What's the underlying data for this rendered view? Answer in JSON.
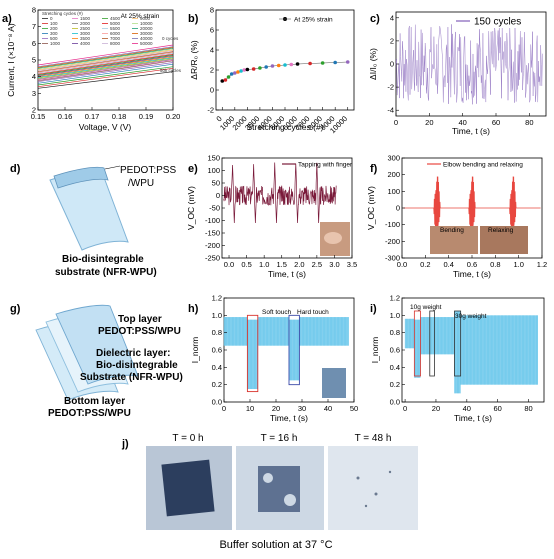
{
  "panel_labels": {
    "a": "a)",
    "b": "b)",
    "c": "c)",
    "d": "d)",
    "e": "e)",
    "f": "f)",
    "g": "g)",
    "h": "h)",
    "i": "i)",
    "j": "j)"
  },
  "panel_a": {
    "annotation": "At 25% strain",
    "legend_title": "Stretching cycles (#)",
    "cycle_labels": [
      "0",
      "100",
      "200",
      "300",
      "500",
      "1000",
      "1500",
      "2000",
      "2500",
      "3000",
      "3500",
      "4000",
      "4500",
      "5000",
      "5500",
      "6000",
      "7000",
      "8000",
      "9000",
      "10000",
      "20000",
      "30000",
      "40000",
      "50000"
    ],
    "side_top": "0 cycles",
    "side_bottom": "50k cycles",
    "ylabel": "Current, I (×10⁻⁸ A)",
    "xlabel": "Voltage, V (V)",
    "xticks": [
      "0.15",
      "0.16",
      "0.17",
      "0.18",
      "0.19",
      "0.20"
    ],
    "yticks": [
      "2",
      "3",
      "4",
      "5",
      "6",
      "7",
      "8"
    ]
  },
  "panel_b": {
    "legend": "At 25% strain",
    "ylabel": "ΔR/R₀ (%)",
    "xlabel": "Stretching cycles (#)",
    "xticks": [
      "0",
      "1000",
      "2000",
      "3000",
      "4000",
      "5000",
      "6000",
      "7000",
      "8000",
      "9000",
      "10000"
    ],
    "yticks": [
      "-2",
      "0",
      "2",
      "4",
      "6",
      "8"
    ]
  },
  "panel_c": {
    "legend": "150 cycles",
    "ylabel": "ΔI/I₀ (%)",
    "xlabel": "Time, t (s)",
    "xticks": [
      "0",
      "20",
      "40",
      "60",
      "80"
    ],
    "yticks": [
      "-4",
      "-2",
      "0",
      "2",
      "4"
    ]
  },
  "panel_d": {
    "top_label_1": "PEDOT:PSS",
    "top_label_2": "/WPU",
    "bottom_label_1": "Bio-disintegrable",
    "bottom_label_2": "substrate (NFR-WPU)"
  },
  "panel_e": {
    "legend": "Tapping with finger",
    "ylabel": "V_OC (mV)",
    "xlabel": "Time, t (s)",
    "xticks": [
      "0.0",
      "0.5",
      "1.0",
      "1.5",
      "2.0",
      "2.5",
      "3.0",
      "3.5"
    ],
    "yticks": [
      "-250",
      "-200",
      "-150",
      "-100",
      "-50",
      "0",
      "50",
      "100",
      "150"
    ]
  },
  "panel_f": {
    "legend": "Elbow bending and relaxing",
    "ylabel": "V_OC (mV)",
    "xlabel": "Time, t (s)",
    "xticks": [
      "0.0",
      "0.2",
      "0.4",
      "0.6",
      "0.8",
      "1.0",
      "1.2"
    ],
    "yticks": [
      "-300",
      "-200",
      "-100",
      "0",
      "100",
      "200",
      "300"
    ],
    "inset_left": "Bending",
    "inset_right": "Relaxing"
  },
  "panel_g": {
    "layer1_a": "Top layer",
    "layer1_b": "PEDOT:PSS/WPU",
    "layer2_a": "Dielectric layer:",
    "layer2_b": "Bio-disintegrable",
    "layer2_c": "Substrate (NFR-WPU)",
    "layer3_a": "Bottom layer",
    "layer3_b": "PEDOT:PSS/WPU"
  },
  "panel_h": {
    "soft": "Soft touch",
    "hard": "Hard touch",
    "ylabel": "I_norm",
    "xlabel": "Time, t (s)",
    "xticks": [
      "0",
      "10",
      "20",
      "30",
      "40",
      "50"
    ],
    "yticks": [
      "0.0",
      "0.2",
      "0.4",
      "0.6",
      "0.8",
      "1.0",
      "1.2"
    ]
  },
  "panel_i": {
    "w10": "10g weight",
    "w30": "30g weight",
    "ylabel": "I_norm",
    "xlabel": "Time, t (s)",
    "xticks": [
      "0",
      "20",
      "40",
      "60",
      "80"
    ],
    "yticks": [
      "0.0",
      "0.2",
      "0.4",
      "0.6",
      "0.8",
      "1.0",
      "1.2"
    ]
  },
  "panel_j": {
    "t0": "T = 0 h",
    "t16": "T = 16 h",
    "t48": "T = 48 h",
    "caption": "Buffer solution at 37 °C"
  },
  "colors": {
    "cycles_band": "#9b7fc7",
    "tapping": "#7a1a3a",
    "elbow": "#e8473f",
    "signal_blue": "#5fc3ea",
    "soft_box": "#d9332c",
    "hard_box": "#3b4aa8",
    "layer": "#bfe0f2"
  },
  "chart_data": [
    {
      "panel": "a",
      "type": "line",
      "x": [
        0.15,
        0.2
      ],
      "series_start": [
        3.3,
        3.4,
        3.5,
        3.6,
        3.7,
        3.75,
        3.8,
        3.85,
        3.9,
        3.95,
        4.0,
        4.05,
        4.1,
        4.15,
        4.2,
        4.25,
        4.3,
        4.35,
        4.4,
        4.45,
        4.5,
        4.55,
        4.6,
        4.7
      ],
      "series_end": [
        4.3,
        4.5,
        4.6,
        4.75,
        4.85,
        4.95,
        5.0,
        5.05,
        5.1,
        5.15,
        5.2,
        5.25,
        5.3,
        5.35,
        5.4,
        5.45,
        5.5,
        5.55,
        5.6,
        5.65,
        5.7,
        5.75,
        5.8,
        5.9
      ],
      "xlim": [
        0.15,
        0.2
      ],
      "ylim": [
        2,
        8
      ]
    },
    {
      "panel": "b",
      "type": "scatter",
      "x": [
        0,
        250,
        500,
        750,
        1000,
        1250,
        1500,
        1750,
        2000,
        2500,
        3000,
        3500,
        4000,
        4500,
        5000,
        5500,
        6000,
        7000,
        8000,
        9000,
        10000
      ],
      "y": [
        0.9,
        1.0,
        1.3,
        1.6,
        1.7,
        1.8,
        1.9,
        2.0,
        2.05,
        2.1,
        2.2,
        2.3,
        2.4,
        2.45,
        2.5,
        2.55,
        2.6,
        2.65,
        2.7,
        2.75,
        2.8
      ],
      "xlim": [
        -500,
        10500
      ],
      "ylim": [
        -2,
        8
      ]
    },
    {
      "panel": "c",
      "type": "line",
      "series": [
        {
          "name": "150 cycles",
          "amplitude": 3.5
        }
      ],
      "xlim": [
        0,
        90
      ],
      "ylim": [
        -4.5,
        4.5
      ]
    },
    {
      "panel": "e",
      "type": "line",
      "series": [
        {
          "name": "Tapping with finger",
          "peak_times": [
            0.1,
            0.7,
            1.3,
            1.9,
            2.5
          ],
          "peak": 130,
          "trough": -110
        }
      ],
      "xlim": [
        -0.2,
        3.5
      ],
      "ylim": [
        -250,
        150
      ]
    },
    {
      "panel": "f",
      "type": "line",
      "series": [
        {
          "name": "Elbow bending and relaxing",
          "burst_times": [
            0.3,
            0.6,
            0.95
          ],
          "peak": 210,
          "trough": -210
        }
      ],
      "xlim": [
        0,
        1.2
      ],
      "ylim": [
        -300,
        300
      ]
    },
    {
      "panel": "h",
      "type": "area",
      "xlim": [
        0,
        50
      ],
      "ylim": [
        0,
        1.2
      ],
      "segments": [
        {
          "from": 0,
          "to": 9,
          "low": 0.65,
          "high": 0.98
        },
        {
          "from": 9,
          "to": 13,
          "low": 0.15,
          "high": 0.95
        },
        {
          "from": 13,
          "to": 25,
          "low": 0.65,
          "high": 0.98
        },
        {
          "from": 25,
          "to": 29,
          "low": 0.25,
          "high": 0.95
        },
        {
          "from": 29,
          "to": 48,
          "low": 0.65,
          "high": 0.98
        }
      ]
    },
    {
      "panel": "i",
      "type": "area",
      "xlim": [
        -2,
        90
      ],
      "ylim": [
        0,
        1.2
      ],
      "segments": [
        {
          "from": 0,
          "to": 6,
          "low": 0.62,
          "high": 0.96
        },
        {
          "from": 6,
          "to": 10,
          "low": 0.28,
          "high": 0.95
        },
        {
          "from": 10,
          "to": 32,
          "low": 0.55,
          "high": 0.98
        },
        {
          "from": 32,
          "to": 36,
          "low": 0.1,
          "high": 1.05
        },
        {
          "from": 36,
          "to": 86,
          "low": 0.2,
          "high": 1.0
        }
      ]
    }
  ]
}
